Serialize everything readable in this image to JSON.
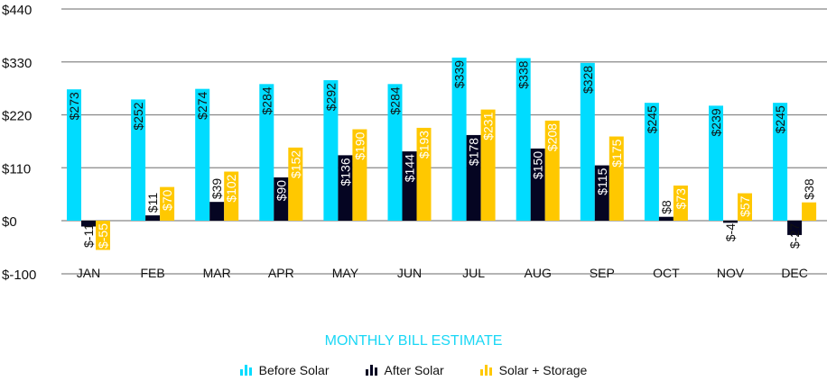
{
  "chart_data": {
    "type": "bar",
    "title": "MONTHLY BILL ESTIMATE",
    "categories": [
      "JAN",
      "FEB",
      "MAR",
      "APR",
      "MAY",
      "JUN",
      "JUL",
      "AUG",
      "SEP",
      "OCT",
      "NOV",
      "DEC"
    ],
    "series": [
      {
        "name": "Before Solar",
        "color": "#00dcff",
        "values": [
          273,
          252,
          274,
          284,
          292,
          284,
          339,
          338,
          328,
          245,
          239,
          245
        ]
      },
      {
        "name": "After Solar",
        "color": "#050522",
        "values": [
          -11,
          11,
          39,
          90,
          136,
          144,
          178,
          150,
          115,
          8,
          -4,
          -27
        ]
      },
      {
        "name": "Solar + Storage",
        "color": "#ffc800",
        "values": [
          -55,
          70,
          102,
          152,
          190,
          193,
          231,
          208,
          175,
          73,
          57,
          38
        ]
      }
    ],
    "yticks": [
      -100,
      0,
      110,
      220,
      330,
      440
    ],
    "ytick_labels": [
      "$-100",
      "$0",
      "$110",
      "$220",
      "$330",
      "$440"
    ],
    "ylim": [
      -100,
      440
    ],
    "grid": true,
    "legend_position": "bottom"
  }
}
